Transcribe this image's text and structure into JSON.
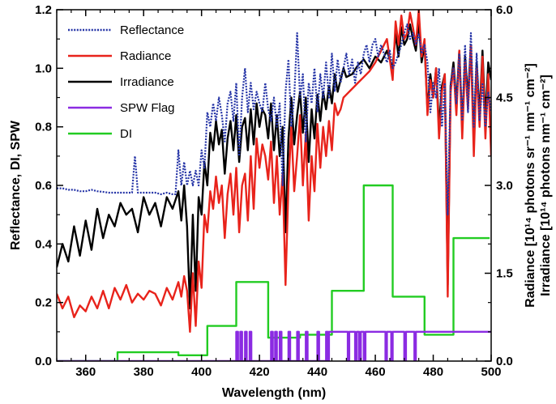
{
  "chart_data": {
    "type": "line",
    "title": "",
    "xlabel": "Wavelength (nm)",
    "ylabel_left": "Reflectance, DI, SPW",
    "ylabel_right": [
      "Radiance [10¹⁴ photons sr⁻¹ nm⁻¹ cm⁻²]",
      "Irradiance [10¹⁴ photons nm⁻¹ cm⁻²]"
    ],
    "xlim": [
      350,
      500
    ],
    "ylim_left": [
      0,
      1.2
    ],
    "ylim_right": [
      0,
      6.0
    ],
    "x_ticks": [
      "360",
      "380",
      "400",
      "420",
      "440",
      "460",
      "480",
      "500"
    ],
    "y_ticks_left": [
      "0.0",
      "0.2",
      "0.4",
      "0.6",
      "0.8",
      "1.0",
      "1.2"
    ],
    "y_ticks_right": [
      "0.0",
      "1.5",
      "3.0",
      "4.5",
      "6.0"
    ],
    "legend_position": "top-left",
    "grid": false,
    "series": [
      {
        "name": "Reflectance",
        "axis": "left",
        "color": "#2433a6",
        "style": "dotted",
        "x": [
          350,
          352,
          354,
          356,
          358,
          360,
          362,
          364,
          366,
          368,
          370,
          372,
          374,
          376,
          377,
          378,
          380,
          382,
          384,
          386,
          388,
          390,
          391,
          392,
          393,
          394,
          395,
          396,
          397,
          398,
          399,
          400,
          401,
          402,
          403,
          404,
          405,
          406,
          407,
          408,
          409,
          410,
          411,
          412,
          413,
          414,
          415,
          416,
          417,
          418,
          419,
          420,
          421,
          422,
          423,
          424,
          425,
          426,
          427,
          428,
          429,
          430,
          431,
          432,
          433,
          434,
          435,
          436,
          437,
          438,
          439,
          440,
          441,
          442,
          443,
          444,
          445,
          446,
          447,
          448,
          449,
          450,
          451,
          452,
          453,
          454,
          455,
          456,
          457,
          458,
          459,
          460,
          461,
          462,
          463,
          464,
          465,
          466,
          467,
          468,
          469,
          470,
          471,
          472,
          473,
          474,
          475,
          476,
          477,
          478,
          479,
          480,
          481,
          482,
          483,
          484,
          485,
          486,
          487,
          488,
          489,
          490,
          491,
          492,
          493,
          494,
          495,
          496,
          497,
          498,
          499,
          500
        ],
        "y": [
          0.59,
          0.59,
          0.585,
          0.585,
          0.58,
          0.58,
          0.585,
          0.58,
          0.578,
          0.575,
          0.575,
          0.575,
          0.575,
          0.575,
          0.7,
          0.575,
          0.575,
          0.575,
          0.575,
          0.57,
          0.575,
          0.57,
          0.57,
          0.72,
          0.6,
          0.68,
          0.6,
          0.65,
          0.6,
          0.65,
          0.6,
          0.72,
          0.66,
          0.85,
          0.8,
          0.88,
          0.82,
          0.9,
          0.84,
          0.75,
          0.88,
          0.92,
          0.82,
          0.95,
          0.7,
          0.9,
          1.0,
          0.85,
          0.95,
          0.86,
          0.92,
          0.88,
          0.85,
          0.95,
          0.86,
          0.82,
          0.9,
          0.8,
          0.88,
          0.6,
          0.92,
          1.03,
          0.8,
          0.9,
          1.12,
          0.9,
          0.98,
          0.75,
          0.95,
          0.88,
          1.0,
          0.85,
          0.98,
          0.9,
          1.02,
          0.9,
          1.05,
          0.92,
          1.03,
          0.95,
          1.0,
          1.05,
          0.98,
          1.03,
          0.95,
          1.02,
          0.98,
          1.05,
          1.08,
          1.02,
          1.08,
          1.1,
          1.04,
          1.08,
          1.05,
          1.02,
          1.06,
          1.0,
          1.02,
          1.05,
          1.08,
          1.12,
          1.15,
          1.1,
          1.12,
          1.08,
          1.12,
          1.05,
          1.08,
          1.02,
          0.85,
          0.95,
          0.9,
          1.0,
          0.8,
          0.95,
          0.5,
          0.95,
          1.0,
          0.88,
          1.05,
          0.82,
          1.08,
          0.85,
          1.12,
          0.8,
          1.05,
          0.82,
          0.95,
          0.8,
          0.92,
          0.85
        ]
      },
      {
        "name": "Radiance",
        "axis": "right",
        "color": "#e8231b",
        "style": "solid",
        "x": [
          350,
          352,
          354,
          356,
          358,
          360,
          362,
          364,
          366,
          368,
          370,
          372,
          374,
          376,
          378,
          380,
          382,
          384,
          386,
          388,
          390,
          392,
          393,
          394,
          395,
          396,
          397,
          398,
          399,
          400,
          401,
          402,
          403,
          404,
          405,
          406,
          407,
          408,
          409,
          410,
          411,
          412,
          413,
          414,
          415,
          416,
          417,
          418,
          419,
          420,
          421,
          422,
          423,
          424,
          425,
          426,
          427,
          428,
          429,
          430,
          431,
          432,
          433,
          434,
          435,
          436,
          437,
          438,
          439,
          440,
          441,
          442,
          443,
          444,
          445,
          446,
          447,
          448,
          449,
          450,
          452,
          454,
          456,
          458,
          460,
          462,
          464,
          466,
          467,
          468,
          469,
          470,
          471,
          472,
          473,
          474,
          475,
          476,
          477,
          478,
          479,
          480,
          481,
          482,
          483,
          484,
          485,
          486,
          487,
          488,
          489,
          490,
          491,
          492,
          493,
          494,
          495,
          496,
          497,
          498,
          499,
          500
        ],
        "y": [
          1.15,
          0.9,
          1.1,
          0.75,
          0.95,
          0.85,
          1.1,
          0.9,
          1.2,
          0.9,
          1.25,
          1.05,
          1.3,
          1.0,
          1.15,
          1.05,
          1.2,
          1.15,
          0.95,
          1.25,
          1.05,
          1.35,
          1.1,
          1.45,
          1.2,
          0.5,
          1.5,
          0.6,
          1.7,
          1.25,
          2.5,
          2.2,
          2.9,
          2.6,
          3.15,
          2.7,
          3.0,
          2.1,
          2.85,
          3.2,
          2.5,
          3.3,
          2.2,
          3.0,
          3.2,
          2.4,
          3.5,
          2.6,
          3.8,
          3.3,
          3.7,
          3.5,
          3.1,
          3.75,
          2.7,
          3.5,
          2.5,
          3.2,
          1.3,
          3.0,
          4.0,
          2.9,
          3.5,
          4.2,
          3.0,
          3.9,
          2.4,
          3.5,
          2.9,
          4.05,
          3.3,
          4.0,
          3.5,
          4.1,
          3.6,
          4.4,
          4.2,
          4.3,
          4.5,
          4.55,
          4.65,
          4.75,
          4.85,
          4.95,
          5.1,
          5.3,
          5.5,
          4.8,
          5.8,
          5.4,
          5.9,
          5.5,
          5.6,
          5.95,
          5.7,
          5.4,
          6.0,
          5.2,
          5.5,
          4.2,
          4.8,
          4.5,
          5.0,
          3.8,
          4.6,
          4.9,
          1.1,
          4.6,
          5.0,
          4.2,
          5.3,
          3.8,
          5.1,
          4.3,
          5.4,
          3.5,
          5.0,
          4.0,
          5.2,
          3.8,
          4.9,
          3.5
        ]
      },
      {
        "name": "Irradiance",
        "axis": "right",
        "color": "#000000",
        "style": "solid",
        "x": [
          350,
          352,
          354,
          356,
          358,
          360,
          362,
          364,
          366,
          368,
          370,
          372,
          374,
          376,
          378,
          380,
          382,
          384,
          386,
          388,
          390,
          392,
          393,
          394,
          395,
          396,
          397,
          398,
          399,
          400,
          401,
          402,
          403,
          404,
          405,
          406,
          407,
          408,
          409,
          410,
          411,
          412,
          413,
          414,
          415,
          416,
          417,
          418,
          419,
          420,
          421,
          422,
          423,
          424,
          425,
          426,
          427,
          428,
          429,
          430,
          431,
          432,
          433,
          434,
          435,
          436,
          437,
          438,
          439,
          440,
          441,
          442,
          443,
          444,
          445,
          446,
          447,
          448,
          449,
          450,
          452,
          454,
          456,
          458,
          460,
          462,
          464,
          466,
          467,
          468,
          469,
          470,
          471,
          472,
          473,
          474,
          475,
          476,
          477,
          478,
          479,
          480,
          481,
          482,
          483,
          484,
          485,
          486,
          487,
          488,
          489,
          490,
          491,
          492,
          493,
          494,
          495,
          496,
          497,
          498,
          499,
          500
        ],
        "y": [
          1.6,
          2.0,
          1.7,
          2.3,
          1.8,
          2.4,
          1.9,
          2.6,
          2.1,
          2.5,
          2.3,
          2.7,
          2.5,
          2.6,
          2.2,
          2.8,
          2.5,
          2.7,
          2.3,
          2.8,
          2.6,
          2.9,
          2.4,
          3.0,
          2.3,
          0.9,
          2.5,
          1.2,
          2.8,
          2.5,
          3.4,
          3.0,
          3.9,
          3.6,
          4.1,
          3.7,
          3.95,
          3.2,
          3.8,
          4.1,
          3.6,
          4.2,
          3.4,
          4.0,
          4.15,
          3.6,
          4.3,
          3.7,
          4.4,
          4.0,
          4.3,
          4.2,
          3.8,
          4.4,
          3.6,
          4.2,
          3.5,
          4.0,
          2.2,
          3.8,
          4.5,
          3.7,
          4.2,
          4.6,
          3.9,
          4.5,
          3.4,
          4.3,
          3.8,
          4.55,
          4.1,
          4.6,
          4.3,
          4.7,
          4.4,
          4.9,
          4.6,
          4.8,
          5.0,
          4.85,
          4.9,
          5.05,
          5.15,
          5.0,
          5.2,
          5.1,
          5.3,
          5.0,
          5.6,
          5.2,
          5.7,
          5.4,
          5.5,
          5.75,
          5.5,
          5.3,
          5.8,
          5.1,
          5.4,
          4.3,
          4.9,
          4.5,
          5.0,
          4.0,
          4.7,
          4.9,
          1.3,
          4.7,
          5.1,
          4.4,
          5.3,
          4.0,
          5.2,
          4.5,
          5.4,
          3.8,
          5.1,
          4.2,
          5.3,
          4.1,
          5.1,
          4.8
        ]
      },
      {
        "name": "SPW Flag",
        "axis": "left",
        "color": "#8b2be2",
        "style": "solid",
        "x": [
          350,
          412,
          412,
          412.6,
          412.6,
          413.4,
          413.4,
          414,
          414,
          415,
          415,
          415.6,
          415.6,
          416.6,
          416.6,
          417.2,
          417.2,
          424,
          424,
          424.6,
          424.6,
          425.4,
          425.4,
          426,
          426,
          427,
          427,
          427.6,
          427.6,
          430,
          430,
          430.6,
          430.6,
          433,
          433,
          433.6,
          433.6,
          436,
          436,
          436.6,
          436.6,
          440,
          440,
          440.6,
          440.6,
          443,
          443,
          443.6,
          443.6,
          444,
          444,
          444.6,
          444.6,
          450.5,
          450.5,
          451,
          451,
          453,
          453,
          453.6,
          453.6,
          454.4,
          454.4,
          455,
          455,
          456,
          456,
          456.6,
          456.6,
          463.5,
          463.5,
          464,
          464,
          465.5,
          465.5,
          466,
          466,
          470,
          470,
          470.6,
          470.6,
          473.5,
          473.5,
          474,
          474,
          500
        ],
        "y": [
          0,
          0,
          0.1,
          0.1,
          0,
          0,
          0.1,
          0.1,
          0,
          0,
          0.1,
          0.1,
          0,
          0,
          0.1,
          0.1,
          0,
          0,
          0.1,
          0.1,
          0,
          0,
          0.1,
          0.1,
          0,
          0,
          0.1,
          0.1,
          0,
          0,
          0.1,
          0.1,
          0,
          0,
          0.1,
          0.1,
          0,
          0,
          0.1,
          0.1,
          0,
          0,
          0.1,
          0.1,
          0,
          0,
          0.1,
          0.1,
          0,
          0,
          0.1,
          0.1,
          0.1,
          0.1,
          0,
          0,
          0.1,
          0.1,
          0,
          0,
          0.1,
          0.1,
          0,
          0,
          0.1,
          0.1,
          0,
          0,
          0.1,
          0.1,
          0,
          0,
          0.1,
          0.1,
          0,
          0,
          0.1,
          0.1,
          0,
          0,
          0.1,
          0.1,
          0,
          0,
          0.1,
          0.1
        ]
      },
      {
        "name": "DI",
        "axis": "left",
        "color": "#22cc22",
        "style": "solid",
        "step": true,
        "x": [
          371,
          392,
          402,
          412,
          423,
          434,
          445,
          456,
          466,
          477,
          487,
          499.5
        ],
        "y": [
          0.03,
          0.02,
          0.12,
          0.27,
          0.08,
          0.09,
          0.24,
          0.6,
          0.22,
          0.09,
          0.42,
          0.42
        ]
      }
    ]
  }
}
